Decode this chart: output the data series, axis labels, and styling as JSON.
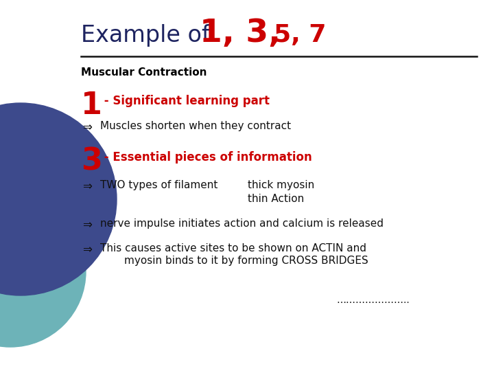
{
  "bg_color": "#ffffff",
  "title_plain": "Example of ",
  "title_numbers": "1, 3,",
  "title_numbers2": "5, 7",
  "title_plain_color": "#1e2460",
  "title_numbers_color": "#cc0000",
  "subtitle": "Muscular Contraction",
  "section1_num": "1",
  "section1_label": " - Significant learning part",
  "section1_num_color": "#cc0000",
  "section1_label_color": "#cc0000",
  "bullet1": "Muscles shorten when they contract",
  "section2_num": "3",
  "section2_label": " - Essential pieces of information",
  "section2_num_color": "#cc0000",
  "section2_label_color": "#cc0000",
  "bullet2a_left": "TWO types of filament",
  "bullet2a_right": "thick myosin",
  "bullet2b": "thin Action",
  "bullet3": "nerve impulse initiates action and calcium is released",
  "bullet4a": "This causes active sites to be shown on ACTIN and",
  "bullet4b": "myosin binds to it by forming CROSS BRIDGES",
  "footer": "…………………..",
  "circle_color1": "#3d4a8c",
  "circle_color2": "#6db3b8",
  "line_color": "#111111",
  "arrow_char": "⇒",
  "bullet_color": "#111111"
}
